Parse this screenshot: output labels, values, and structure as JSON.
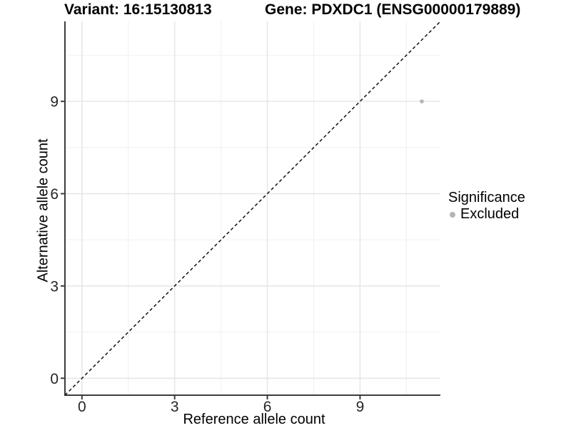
{
  "chart_data": {
    "type": "scatter",
    "title_left": "Variant: 16:15130813",
    "title_right": "Gene: PDXDC1 (ENSG00000179889)",
    "xlabel": "Reference allele count",
    "ylabel": "Alternative allele count",
    "xlim": [
      -0.55,
      11.6
    ],
    "ylim": [
      -0.55,
      11.6
    ],
    "x_ticks": [
      0,
      3,
      6,
      9
    ],
    "y_ticks": [
      0,
      3,
      6,
      9
    ],
    "x_minor_ticks": [
      1.5,
      4.5,
      7.5,
      10.5
    ],
    "y_minor_ticks": [
      1.5,
      4.5,
      7.5,
      10.5
    ],
    "grid": true,
    "points": [
      {
        "x": 11,
        "y": 9,
        "series": "Excluded",
        "color": "#b5b5b5"
      }
    ],
    "reference_line": {
      "kind": "identity",
      "style": "dashed",
      "color": "#111111"
    },
    "legend": {
      "title": "Significance",
      "position": "right",
      "entries": [
        {
          "label": "Excluded",
          "color": "#b5b5b5"
        }
      ]
    },
    "colors": {
      "background": "#ffffff",
      "grid_major": "#e7e7e7",
      "grid_minor": "#f2f2f2",
      "axis_line": "#3d3d3d",
      "tick_label": "#262626",
      "title_text": "#000000"
    }
  }
}
